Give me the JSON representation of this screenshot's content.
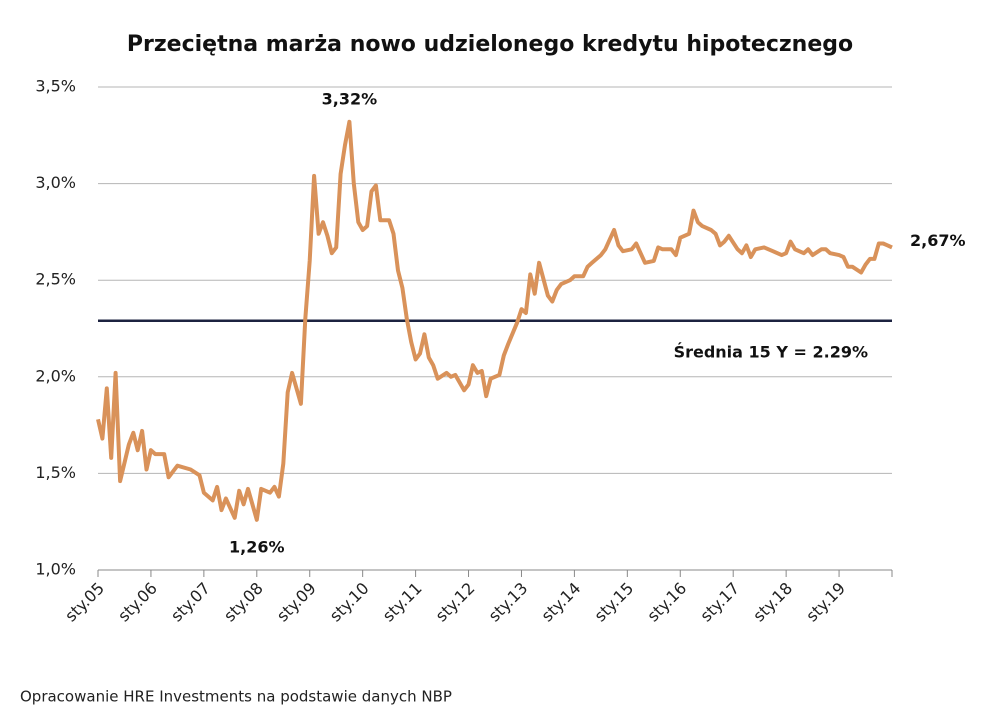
{
  "chart_data": {
    "type": "line",
    "title": "Przeciętna marża nowo udzielonego kredytu hipotecznego",
    "source": "Opracowanie HRE Investments na podstawie danych NBP",
    "color": "#d9925a",
    "x": [
      0,
      1,
      2,
      3,
      4,
      5,
      7,
      8,
      9,
      10,
      11,
      12,
      13,
      15,
      16,
      18,
      21,
      23,
      24,
      26,
      27,
      28,
      29,
      31,
      32,
      33,
      34,
      36,
      37,
      39,
      40,
      41,
      42,
      43,
      44,
      46,
      47,
      48,
      49,
      50,
      51,
      52,
      53,
      54,
      55,
      56,
      57,
      58,
      59,
      60,
      61,
      62,
      63,
      64,
      66,
      67,
      68,
      69,
      70,
      71,
      72,
      73,
      74,
      75,
      76,
      77,
      79,
      80,
      81,
      83,
      84,
      85,
      86,
      87,
      88,
      89,
      91,
      92,
      93,
      95,
      96,
      97,
      98,
      99,
      100,
      102,
      103,
      104,
      105,
      107,
      108,
      110,
      111,
      112,
      114,
      115,
      116,
      117,
      118,
      119,
      121,
      122,
      123,
      124,
      126,
      127,
      128,
      130,
      131,
      132,
      134,
      135,
      136,
      137,
      139,
      140,
      141,
      142,
      143,
      145,
      146,
      147,
      148,
      149,
      151,
      152,
      153,
      155,
      156,
      157,
      158,
      160,
      161,
      162,
      164,
      165,
      166,
      168,
      169,
      170,
      171,
      173,
      174,
      175,
      176,
      177,
      178,
      179,
      180
    ],
    "values": [
      1.78,
      1.68,
      1.94,
      1.58,
      2.02,
      1.46,
      1.65,
      1.71,
      1.62,
      1.72,
      1.52,
      1.62,
      1.6,
      1.6,
      1.48,
      1.54,
      1.52,
      1.49,
      1.4,
      1.36,
      1.43,
      1.31,
      1.37,
      1.27,
      1.41,
      1.34,
      1.42,
      1.26,
      1.42,
      1.4,
      1.43,
      1.38,
      1.55,
      1.92,
      2.02,
      1.86,
      2.3,
      2.6,
      3.04,
      2.74,
      2.8,
      2.73,
      2.64,
      2.67,
      3.05,
      3.2,
      3.32,
      3.0,
      2.8,
      2.76,
      2.78,
      2.96,
      2.99,
      2.81,
      2.81,
      2.74,
      2.55,
      2.46,
      2.3,
      2.18,
      2.09,
      2.12,
      2.22,
      2.1,
      2.06,
      1.99,
      2.02,
      2.0,
      2.01,
      1.93,
      1.96,
      2.06,
      2.02,
      2.03,
      1.9,
      1.99,
      2.01,
      2.11,
      2.17,
      2.28,
      2.35,
      2.33,
      2.53,
      2.43,
      2.59,
      2.42,
      2.39,
      2.45,
      2.48,
      2.5,
      2.52,
      2.52,
      2.57,
      2.59,
      2.63,
      2.66,
      2.71,
      2.76,
      2.68,
      2.65,
      2.66,
      2.69,
      2.64,
      2.59,
      2.6,
      2.67,
      2.66,
      2.66,
      2.63,
      2.72,
      2.74,
      2.86,
      2.8,
      2.78,
      2.76,
      2.74,
      2.68,
      2.7,
      2.73,
      2.66,
      2.64,
      2.68,
      2.62,
      2.66,
      2.67,
      2.66,
      2.65,
      2.63,
      2.64,
      2.7,
      2.66,
      2.64,
      2.66,
      2.63,
      2.66,
      2.66,
      2.64,
      2.63,
      2.62,
      2.57,
      2.57,
      2.54,
      2.58,
      2.61,
      2.61,
      2.69,
      2.69,
      2.68,
      2.67
    ],
    "annotations": [
      "3,32%",
      "1,26%",
      "2,67%"
    ],
    "average_line": {
      "value": 2.29,
      "label": "Średnia 15 Y = 2.29%",
      "color": "#1c2340"
    },
    "xlim": [
      0,
      180
    ],
    "xticks": [
      {
        "value": 0,
        "label": "sty.05"
      },
      {
        "value": 12,
        "label": "sty.06"
      },
      {
        "value": 24,
        "label": "sty.07"
      },
      {
        "value": 36,
        "label": "sty.08"
      },
      {
        "value": 48,
        "label": "sty.09"
      },
      {
        "value": 60,
        "label": "sty.10"
      },
      {
        "value": 72,
        "label": "sty.11"
      },
      {
        "value": 84,
        "label": "sty.12"
      },
      {
        "value": 96,
        "label": "sty.13"
      },
      {
        "value": 108,
        "label": "sty.14"
      },
      {
        "value": 120,
        "label": "sty.15"
      },
      {
        "value": 132,
        "label": "sty.16"
      },
      {
        "value": 144,
        "label": "sty.17"
      },
      {
        "value": 156,
        "label": "sty.18"
      },
      {
        "value": 168,
        "label": "sty.19"
      }
    ],
    "ylim": [
      1.0,
      3.5
    ],
    "yticks": [
      {
        "value": 1.0,
        "label": "1,0%"
      },
      {
        "value": 1.5,
        "label": "1,5%"
      },
      {
        "value": 2.0,
        "label": "2,0%"
      },
      {
        "value": 2.5,
        "label": "2,5%"
      },
      {
        "value": 3.0,
        "label": "3,0%"
      },
      {
        "value": 3.5,
        "label": "3,5%"
      }
    ],
    "grid": true
  }
}
